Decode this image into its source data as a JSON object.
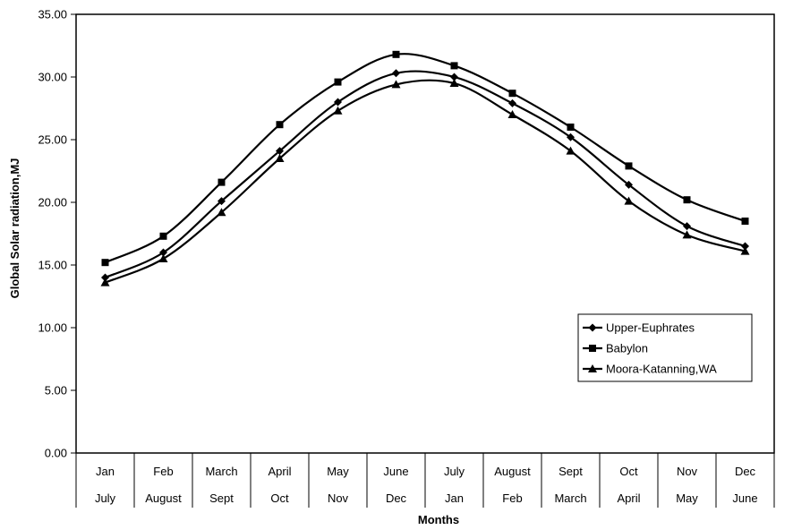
{
  "chart_data": {
    "type": "line",
    "title": "",
    "xlabel": "Months",
    "ylabel": "Global Solar radiation,MJ",
    "ylim": [
      0,
      35
    ],
    "yticks": [
      "0.00",
      "5.00",
      "10.00",
      "15.00",
      "20.00",
      "25.00",
      "30.00",
      "35.00"
    ],
    "categories_row1": [
      "Jan",
      "Feb",
      "March",
      "April",
      "May",
      "June",
      "July",
      "August",
      "Sept",
      "Oct",
      "Nov",
      "Dec"
    ],
    "categories_row2": [
      "July",
      "August",
      "Sept",
      "Oct",
      "Nov",
      "Dec",
      "Jan",
      "Feb",
      "March",
      "April",
      "May",
      "June"
    ],
    "grid": false,
    "legend_position": "right",
    "series": [
      {
        "name": "Upper-Euphrates",
        "marker": "diamond",
        "values": [
          14.0,
          16.0,
          20.1,
          24.1,
          28.0,
          30.3,
          30.0,
          27.9,
          25.2,
          21.4,
          18.1,
          16.5
        ]
      },
      {
        "name": "Babylon",
        "marker": "square",
        "values": [
          15.2,
          17.3,
          21.6,
          26.2,
          29.6,
          31.8,
          30.9,
          28.7,
          26.0,
          22.9,
          20.2,
          18.5
        ]
      },
      {
        "name": "Moora-Katanning,WA",
        "marker": "triangle",
        "values": [
          13.6,
          15.5,
          19.2,
          23.5,
          27.3,
          29.4,
          29.5,
          27.0,
          24.1,
          20.1,
          17.4,
          16.1
        ]
      }
    ],
    "line_color": "#000000"
  }
}
